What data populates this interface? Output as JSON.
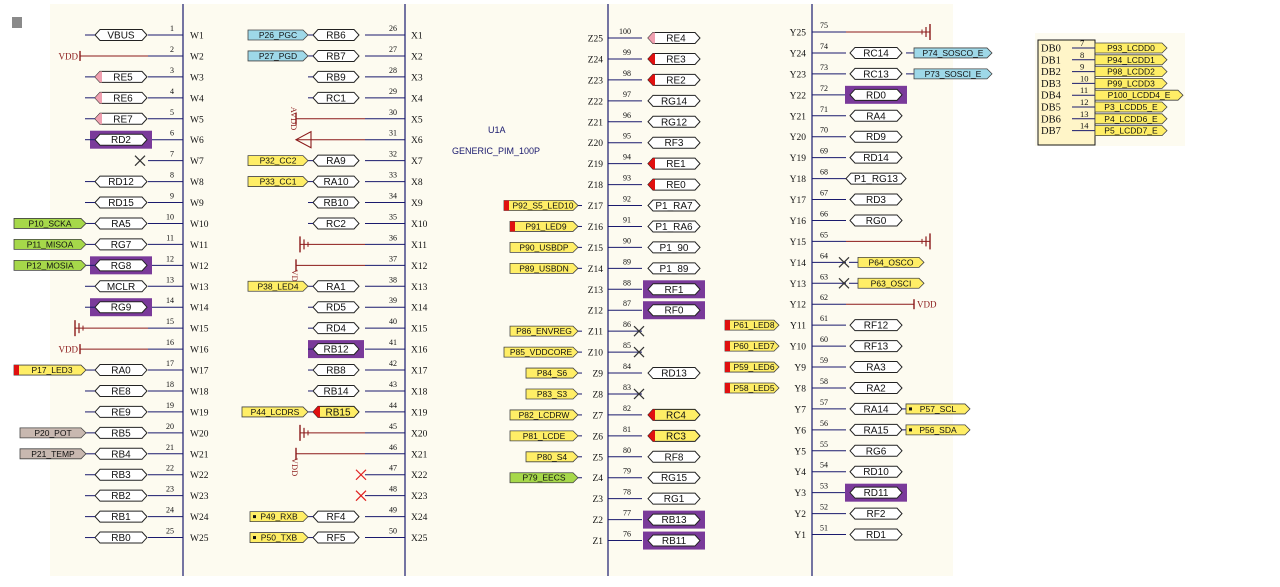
{
  "colors": {
    "background": "#fdfbf0",
    "wire": "#1a1a6e",
    "power": "#8b1a1a",
    "highlight": "#7a3a9a",
    "flag_yellow": "#ffee66",
    "flag_green": "#a6d84a",
    "flag_blue": "#9ed8e8",
    "flag_gray": "#c8b8b0",
    "pin_red": "#e01010",
    "pin_pink": "#f0a0b0",
    "no_connect_red": "#e02020"
  },
  "part": {
    "designator": "U1A",
    "name": "GENERIC_PIM_100P"
  },
  "power_labels": {
    "vdd": "VDD",
    "avdd": "AVDD"
  },
  "bus": {
    "labels": [
      "DB0",
      "DB1",
      "DB2",
      "DB3",
      "DB4",
      "DB5",
      "DB6",
      "DB7"
    ],
    "nums": [
      "7",
      "8",
      "9",
      "10",
      "11",
      "12",
      "13",
      "14"
    ],
    "nets": [
      "P93_LCDD0",
      "P94_LCDD1",
      "P98_LCDD2",
      "P99_LCDD3",
      "P100_LCDD4_E",
      "P3_LCDD5_E",
      "P4_LCDD6_E",
      "P5_LCDD7_E"
    ]
  },
  "col_w": [
    {
      "pin": "W1",
      "num": "1",
      "port": "VBUS"
    },
    {
      "pin": "W2",
      "num": "2",
      "power": "VDD"
    },
    {
      "pin": "W3",
      "num": "3",
      "port": "RE5",
      "mark": "pink"
    },
    {
      "pin": "W4",
      "num": "4",
      "port": "RE6",
      "mark": "pink"
    },
    {
      "pin": "W5",
      "num": "5",
      "port": "RE7",
      "mark": "pink"
    },
    {
      "pin": "W6",
      "num": "6",
      "port": "RD2",
      "hl": true
    },
    {
      "pin": "W7",
      "num": "7",
      "nc": "x"
    },
    {
      "pin": "W8",
      "num": "8",
      "port": "RD12"
    },
    {
      "pin": "W9",
      "num": "9",
      "port": "RD15"
    },
    {
      "pin": "W10",
      "num": "10",
      "port": "RA5",
      "net": "P10_SCKA",
      "netColor": "green"
    },
    {
      "pin": "W11",
      "num": "11",
      "port": "RG7",
      "net": "P11_MISOA",
      "netColor": "green"
    },
    {
      "pin": "W12",
      "num": "12",
      "port": "RG8",
      "net": "P12_MOSIA",
      "netColor": "green",
      "hl": true
    },
    {
      "pin": "W13",
      "num": "13",
      "port": "MCLR"
    },
    {
      "pin": "W14",
      "num": "14",
      "port": "RG9",
      "hl": true
    },
    {
      "pin": "W15",
      "num": "15",
      "gnd": true
    },
    {
      "pin": "W16",
      "num": "16",
      "power": "VDD"
    },
    {
      "pin": "W17",
      "num": "17",
      "port": "RA0",
      "net": "P17_LED3",
      "netColor": "yellow",
      "netMark": true
    },
    {
      "pin": "W18",
      "num": "18",
      "port": "RE8"
    },
    {
      "pin": "W19",
      "num": "19",
      "port": "RE9"
    },
    {
      "pin": "W20",
      "num": "20",
      "port": "RB5",
      "net": "P20_POT",
      "netColor": "gray"
    },
    {
      "pin": "W21",
      "num": "21",
      "port": "RB4",
      "net": "P21_TEMP",
      "netColor": "gray"
    },
    {
      "pin": "W22",
      "num": "22",
      "port": "RB3"
    },
    {
      "pin": "W23",
      "num": "23",
      "port": "RB2"
    },
    {
      "pin": "W24",
      "num": "24",
      "port": "RB1"
    },
    {
      "pin": "W25",
      "num": "25",
      "port": "RB0"
    }
  ],
  "col_x": [
    {
      "pin": "X1",
      "num": "26",
      "port": "RB6",
      "net": "P26_PGC",
      "netColor": "blue"
    },
    {
      "pin": "X2",
      "num": "27",
      "port": "RB7",
      "net": "P27_PGD",
      "netColor": "blue"
    },
    {
      "pin": "X3",
      "num": "28",
      "port": "RB9"
    },
    {
      "pin": "X4",
      "num": "29",
      "port": "RC1"
    },
    {
      "pin": "X5",
      "num": "30",
      "avdd": true
    },
    {
      "pin": "X6",
      "num": "31"
    },
    {
      "pin": "X7",
      "num": "32",
      "port": "RA9",
      "net": "P32_CC2",
      "netColor": "yellow"
    },
    {
      "pin": "X8",
      "num": "33",
      "port": "RA10",
      "net": "P33_CC1",
      "netColor": "yellow"
    },
    {
      "pin": "X9",
      "num": "34",
      "port": "RB10"
    },
    {
      "pin": "X10",
      "num": "35",
      "port": "RC2"
    },
    {
      "pin": "X11",
      "num": "36",
      "gnd": true
    },
    {
      "pin": "X12",
      "num": "37",
      "vddRot": true
    },
    {
      "pin": "X13",
      "num": "38",
      "port": "RA1",
      "net": "P38_LED4",
      "netColor": "yellow"
    },
    {
      "pin": "X14",
      "num": "39",
      "port": "RD5"
    },
    {
      "pin": "X15",
      "num": "40",
      "port": "RD4"
    },
    {
      "pin": "X16",
      "num": "41",
      "port": "RB12",
      "hl": true
    },
    {
      "pin": "X17",
      "num": "42",
      "port": "RB8"
    },
    {
      "pin": "X18",
      "num": "43",
      "port": "RB14"
    },
    {
      "pin": "X19",
      "num": "44",
      "port": "RB15",
      "net": "P44_LCDRS",
      "netColor": "yellow",
      "mark": "red",
      "portColor": "yellow"
    },
    {
      "pin": "X20",
      "num": "45",
      "gnd": true
    },
    {
      "pin": "X21",
      "num": "46",
      "vddRot": true
    },
    {
      "pin": "X22",
      "num": "47",
      "nc": "red"
    },
    {
      "pin": "X23",
      "num": "48",
      "nc": "red"
    },
    {
      "pin": "X24",
      "num": "49",
      "port": "RF4",
      "net": "P49_RXB",
      "netColor": "yellow",
      "netDot": true
    },
    {
      "pin": "X25",
      "num": "50",
      "port": "RF5",
      "net": "P50_TXB",
      "netColor": "yellow",
      "netDot": true
    }
  ],
  "col_z": [
    {
      "pin": "Z25",
      "num": "100",
      "port": "RE4",
      "mark": "pink"
    },
    {
      "pin": "Z24",
      "num": "99",
      "port": "RE3",
      "mark": "red"
    },
    {
      "pin": "Z23",
      "num": "98",
      "port": "RE2",
      "mark": "red"
    },
    {
      "pin": "Z22",
      "num": "97",
      "port": "RG14"
    },
    {
      "pin": "Z21",
      "num": "96",
      "port": "RG12"
    },
    {
      "pin": "Z20",
      "num": "95",
      "port": "RF3"
    },
    {
      "pin": "Z19",
      "num": "94",
      "port": "RE1",
      "mark": "red"
    },
    {
      "pin": "Z18",
      "num": "93",
      "port": "RE0",
      "mark": "red"
    },
    {
      "pin": "Z17",
      "num": "92",
      "port": "P1_RA7",
      "net": "P92_S5_LED10",
      "netColor": "yellow",
      "netMark": true
    },
    {
      "pin": "Z16",
      "num": "91",
      "port": "P1_RA6",
      "net": "P91_LED9",
      "netColor": "yellow",
      "netMark": true
    },
    {
      "pin": "Z15",
      "num": "90",
      "port": "P1_90",
      "net": "P90_USBDP",
      "netColor": "yellow"
    },
    {
      "pin": "Z14",
      "num": "89",
      "port": "P1_89",
      "net": "P89_USBDN",
      "netColor": "yellow"
    },
    {
      "pin": "Z13",
      "num": "88",
      "port": "RF1",
      "hl": true
    },
    {
      "pin": "Z12",
      "num": "87",
      "port": "RF0",
      "hl": true
    },
    {
      "pin": "Z11",
      "num": "86",
      "net": "P86_ENVREG",
      "netColor": "yellow",
      "nc": "x"
    },
    {
      "pin": "Z10",
      "num": "85",
      "net": "P85_VDDCORE",
      "netColor": "yellow",
      "nc": "x"
    },
    {
      "pin": "Z9",
      "num": "84",
      "port": "RD13",
      "net": "P84_S6",
      "netColor": "yellow"
    },
    {
      "pin": "Z8",
      "num": "83",
      "net": "P83_S3",
      "netColor": "yellow",
      "nc": "x"
    },
    {
      "pin": "Z7",
      "num": "82",
      "port": "RC4",
      "net": "P82_LCDRW",
      "netColor": "yellow",
      "mark": "red",
      "portColor": "yellow"
    },
    {
      "pin": "Z6",
      "num": "81",
      "port": "RC3",
      "net": "P81_LCDE",
      "netColor": "yellow",
      "mark": "red",
      "portColor": "yellow"
    },
    {
      "pin": "Z5",
      "num": "80",
      "port": "RF8",
      "net": "P80_S4",
      "netColor": "yellow"
    },
    {
      "pin": "Z4",
      "num": "79",
      "port": "RG15",
      "net": "P79_EECS",
      "netColor": "green"
    },
    {
      "pin": "Z3",
      "num": "78",
      "port": "RG1"
    },
    {
      "pin": "Z2",
      "num": "77",
      "port": "RB13",
      "hl": true
    },
    {
      "pin": "Z1",
      "num": "76",
      "port": "RB11",
      "hl": true
    }
  ],
  "col_y": [
    {
      "pin": "Y25",
      "num": "75",
      "gnd": true
    },
    {
      "pin": "Y24",
      "num": "74",
      "port": "RC14",
      "net": "P74_SOSCO_E",
      "netColor": "blue"
    },
    {
      "pin": "Y23",
      "num": "73",
      "port": "RC13",
      "net": "P73_SOSCI_E",
      "netColor": "blue"
    },
    {
      "pin": "Y22",
      "num": "72",
      "port": "RD0",
      "hl": true
    },
    {
      "pin": "Y21",
      "num": "71",
      "port": "RA4"
    },
    {
      "pin": "Y20",
      "num": "70",
      "port": "RD9"
    },
    {
      "pin": "Y19",
      "num": "69",
      "port": "RD14"
    },
    {
      "pin": "Y18",
      "num": "68",
      "port": "P1_RG13"
    },
    {
      "pin": "Y17",
      "num": "67",
      "port": "RD3"
    },
    {
      "pin": "Y16",
      "num": "66",
      "port": "RG0"
    },
    {
      "pin": "Y15",
      "num": "65",
      "gnd": true
    },
    {
      "pin": "Y14",
      "num": "64",
      "net": "P64_OSCO",
      "netColor": "yellow",
      "nc": "x"
    },
    {
      "pin": "Y13",
      "num": "63",
      "net": "P63_OSCI",
      "netColor": "yellow",
      "nc": "x"
    },
    {
      "pin": "Y12",
      "num": "62",
      "power": "VDD"
    },
    {
      "pin": "Y11",
      "num": "61",
      "port": "RF12",
      "net": "P61_LED8",
      "netColor": "yellow",
      "netMark": true
    },
    {
      "pin": "Y10",
      "num": "60",
      "port": "RF13",
      "net": "P60_LED7",
      "netColor": "yellow",
      "netMark": true
    },
    {
      "pin": "Y9",
      "num": "59",
      "port": "RA3",
      "net": "P59_LED6",
      "netColor": "yellow",
      "netMark": true
    },
    {
      "pin": "Y8",
      "num": "58",
      "port": "RA2",
      "net": "P58_LED5",
      "netColor": "yellow",
      "netMark": true
    },
    {
      "pin": "Y7",
      "num": "57",
      "port": "RA14",
      "net": "P57_SCL",
      "netColor": "yellow",
      "netDot": true
    },
    {
      "pin": "Y6",
      "num": "56",
      "port": "RA15",
      "net": "P56_SDA",
      "netColor": "yellow",
      "netDot": true
    },
    {
      "pin": "Y5",
      "num": "55",
      "port": "RG6"
    },
    {
      "pin": "Y4",
      "num": "54",
      "port": "RD10"
    },
    {
      "pin": "Y3",
      "num": "53",
      "port": "RD11",
      "hl": true
    },
    {
      "pin": "Y2",
      "num": "52",
      "port": "RF2"
    },
    {
      "pin": "Y1",
      "num": "51",
      "port": "RD1"
    }
  ]
}
